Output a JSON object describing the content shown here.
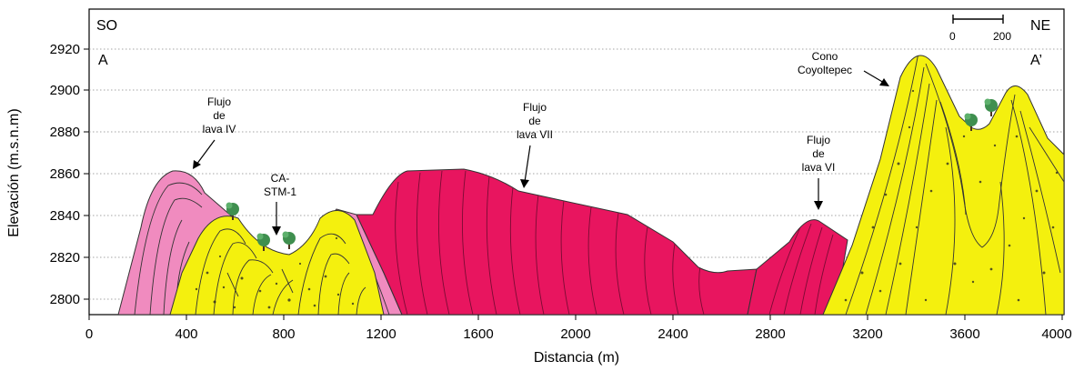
{
  "corner_labels": {
    "sw": "SO",
    "ne": "NE",
    "a": "A",
    "a_prime": "A’"
  },
  "scale_bar": {
    "start_label": "0",
    "end_label": "200"
  },
  "axes": {
    "x_label": "Distancia (m)",
    "y_label": "Elevación (m.s.n.m)",
    "x_ticks": [
      "0",
      "400",
      "800",
      "1200",
      "1600",
      "2000",
      "2400",
      "2800",
      "3200",
      "3600",
      "4000"
    ],
    "y_ticks": [
      "2800",
      "2820",
      "2840",
      "2860",
      "2880",
      "2900",
      "2920"
    ]
  },
  "annotations": {
    "lava_iv": [
      "Flujo",
      "de",
      "lava IV"
    ],
    "ca_stm": [
      "CA-",
      "STM-1"
    ],
    "lava_vii": [
      "Flujo",
      "de",
      "lava VII"
    ],
    "lava_vi": [
      "Flujo",
      "de",
      "lava VI"
    ],
    "cono": [
      "Cono",
      "Coyoltepec"
    ]
  },
  "colors": {
    "lava_light": "#f08bbf",
    "lava_dark": "#e8155f",
    "pyroclastic": "#f4f00e",
    "tree": "#3f8f4f"
  }
}
